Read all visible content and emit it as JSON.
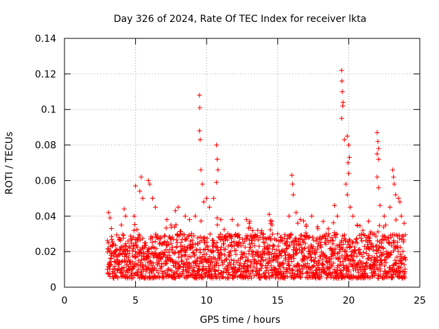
{
  "chart_data": {
    "type": "scatter",
    "title": "Day 326 of 2024, Rate Of TEC Index for receiver lkta",
    "xlabel": "GPS time / hours",
    "ylabel": "ROTI / TECUs",
    "xlim": [
      0,
      25
    ],
    "ylim": [
      0,
      0.14
    ],
    "xticks": [
      0,
      5,
      10,
      15,
      20,
      25
    ],
    "xtick_labels": [
      "0",
      "5",
      "10",
      "15",
      "20",
      "25"
    ],
    "yticks": [
      0,
      0.02,
      0.04,
      0.06,
      0.08,
      0.1,
      0.12,
      0.14
    ],
    "ytick_labels": [
      "0",
      "0.02",
      "0.04",
      "0.06",
      "0.08",
      "0.1",
      "0.12",
      "0.14"
    ],
    "grid": true,
    "marker": "+",
    "color": "#ff0000",
    "data_coverage_hours": [
      3.0,
      24.0
    ],
    "typical_range": [
      0.005,
      0.03
    ],
    "series": [
      {
        "name": "ROTI",
        "points": [
          [
            3.1,
            0.042
          ],
          [
            3.2,
            0.039
          ],
          [
            3.3,
            0.033
          ],
          [
            4.0,
            0.035
          ],
          [
            4.2,
            0.044
          ],
          [
            4.3,
            0.04
          ],
          [
            4.9,
            0.04
          ],
          [
            5.0,
            0.057
          ],
          [
            5.3,
            0.054
          ],
          [
            5.4,
            0.062
          ],
          [
            5.5,
            0.05
          ],
          [
            5.9,
            0.06
          ],
          [
            6.0,
            0.058
          ],
          [
            6.2,
            0.05
          ],
          [
            6.4,
            0.045
          ],
          [
            7.2,
            0.038
          ],
          [
            7.5,
            0.035
          ],
          [
            7.8,
            0.043
          ],
          [
            8.0,
            0.045
          ],
          [
            8.5,
            0.04
          ],
          [
            8.8,
            0.038
          ],
          [
            9.2,
            0.04
          ],
          [
            9.5,
            0.108
          ],
          [
            9.52,
            0.101
          ],
          [
            9.5,
            0.088
          ],
          [
            9.55,
            0.083
          ],
          [
            9.6,
            0.066
          ],
          [
            9.7,
            0.058
          ],
          [
            9.8,
            0.048
          ],
          [
            10.0,
            0.05
          ],
          [
            10.2,
            0.045
          ],
          [
            10.5,
            0.05
          ],
          [
            10.7,
            0.08
          ],
          [
            10.75,
            0.072
          ],
          [
            10.8,
            0.066
          ],
          [
            10.7,
            0.059
          ],
          [
            11.0,
            0.038
          ],
          [
            11.8,
            0.038
          ],
          [
            12.2,
            0.035
          ],
          [
            12.8,
            0.038
          ],
          [
            13.0,
            0.036
          ],
          [
            13.6,
            0.032
          ],
          [
            14.0,
            0.03
          ],
          [
            14.4,
            0.041
          ],
          [
            14.6,
            0.035
          ],
          [
            15.0,
            0.03
          ],
          [
            15.2,
            0.028
          ],
          [
            15.8,
            0.04
          ],
          [
            16.0,
            0.063
          ],
          [
            16.05,
            0.058
          ],
          [
            16.1,
            0.052
          ],
          [
            16.3,
            0.042
          ],
          [
            16.6,
            0.038
          ],
          [
            17.0,
            0.035
          ],
          [
            17.4,
            0.04
          ],
          [
            17.8,
            0.034
          ],
          [
            18.2,
            0.037
          ],
          [
            18.6,
            0.03
          ],
          [
            19.0,
            0.046
          ],
          [
            19.2,
            0.04
          ],
          [
            19.5,
            0.122
          ],
          [
            19.52,
            0.116
          ],
          [
            19.55,
            0.11
          ],
          [
            19.6,
            0.104
          ],
          [
            19.58,
            0.102
          ],
          [
            19.5,
            0.095
          ],
          [
            19.7,
            0.083
          ],
          [
            19.9,
            0.085
          ],
          [
            20.0,
            0.08
          ],
          [
            20.05,
            0.073
          ],
          [
            19.95,
            0.07
          ],
          [
            20.0,
            0.064
          ],
          [
            19.8,
            0.058
          ],
          [
            19.9,
            0.052
          ],
          [
            20.1,
            0.045
          ],
          [
            20.3,
            0.04
          ],
          [
            20.6,
            0.035
          ],
          [
            21.0,
            0.032
          ],
          [
            21.4,
            0.028
          ],
          [
            21.8,
            0.03
          ],
          [
            22.0,
            0.087
          ],
          [
            22.05,
            0.082
          ],
          [
            22.1,
            0.078
          ],
          [
            22.0,
            0.075
          ],
          [
            22.1,
            0.072
          ],
          [
            22.0,
            0.062
          ],
          [
            22.1,
            0.056
          ],
          [
            22.2,
            0.046
          ],
          [
            22.5,
            0.04
          ],
          [
            22.9,
            0.045
          ],
          [
            23.1,
            0.066
          ],
          [
            23.15,
            0.062
          ],
          [
            23.2,
            0.058
          ],
          [
            23.3,
            0.052
          ],
          [
            23.5,
            0.05
          ],
          [
            23.6,
            0.048
          ],
          [
            23.7,
            0.04
          ],
          [
            23.9,
            0.036
          ]
        ]
      }
    ]
  }
}
